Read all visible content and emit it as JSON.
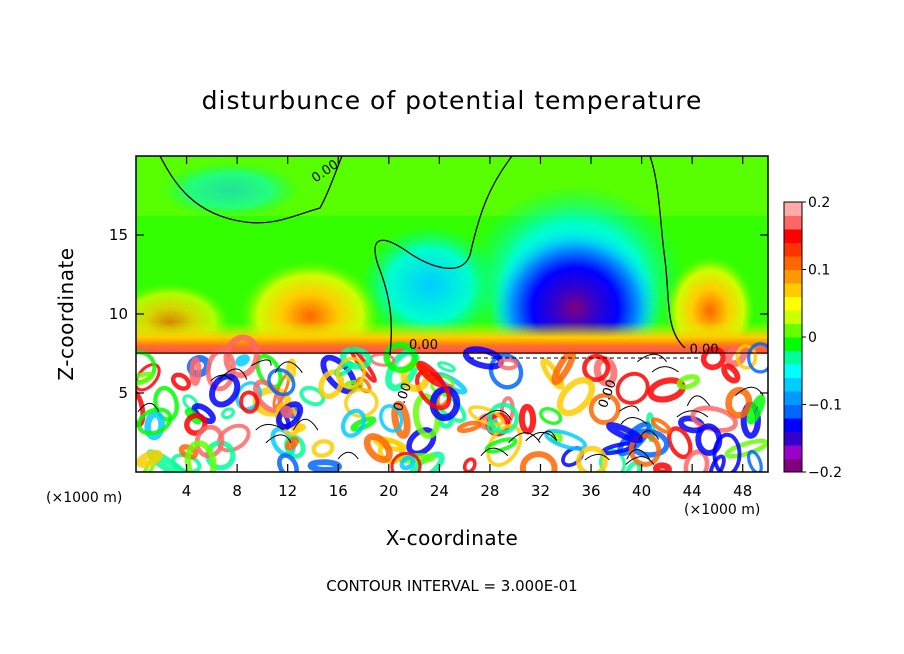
{
  "chart_data": {
    "type": "heatmap",
    "title": "disturbunce of potential temperature",
    "xlabel": "X-coordinate",
    "ylabel": "Z-coordinate",
    "x_unit_left": "(×1000 m)",
    "x_unit_right": "(×1000 m)",
    "footnote": "CONTOUR INTERVAL = 3.000E-01",
    "xlim": [
      0,
      50
    ],
    "ylim": [
      0,
      20
    ],
    "x_ticks": [
      {
        "value": 4,
        "label": "4"
      },
      {
        "value": 8,
        "label": "8"
      },
      {
        "value": 12,
        "label": "12"
      },
      {
        "value": 16,
        "label": "16"
      },
      {
        "value": 20,
        "label": "20"
      },
      {
        "value": 24,
        "label": "24"
      },
      {
        "value": 28,
        "label": "28"
      },
      {
        "value": 32,
        "label": "32"
      },
      {
        "value": 36,
        "label": "36"
      },
      {
        "value": 40,
        "label": "40"
      },
      {
        "value": 44,
        "label": "44"
      },
      {
        "value": 48,
        "label": "48"
      }
    ],
    "y_ticks": [
      {
        "value": 5,
        "label": "5"
      },
      {
        "value": 10,
        "label": "10"
      },
      {
        "value": 15,
        "label": "15"
      }
    ],
    "colorbar": {
      "min": -0.2,
      "max": 0.2,
      "ticks": [
        {
          "value": 0.2,
          "label": "0.2"
        },
        {
          "value": 0.1,
          "label": "0.1"
        },
        {
          "value": 0,
          "label": "0"
        },
        {
          "value": -0.1,
          "label": "−0.1"
        },
        {
          "value": -0.2,
          "label": "−0.2"
        }
      ],
      "colors": [
        "#800080",
        "#9900cc",
        "#3300cc",
        "#0000ff",
        "#0066ff",
        "#0099ff",
        "#00ccff",
        "#00ffff",
        "#00ff99",
        "#00ff00",
        "#66ff00",
        "#ccff00",
        "#ffff00",
        "#ffcc00",
        "#ff9900",
        "#ff6600",
        "#ff3300",
        "#ff0000",
        "#ff6666",
        "#ffaaaa"
      ]
    },
    "contour_labels": [
      {
        "text": "0.00",
        "x": 14.2,
        "z": 18.3
      },
      {
        "text": "0.00",
        "x": 21.6,
        "z": 7.8
      },
      {
        "text": "0.00",
        "x": 43.8,
        "z": 7.5
      },
      {
        "text": "0.00",
        "x": 21.0,
        "z": 3.8
      },
      {
        "text": "0.00",
        "x": 37.2,
        "z": 4.0
      }
    ]
  }
}
